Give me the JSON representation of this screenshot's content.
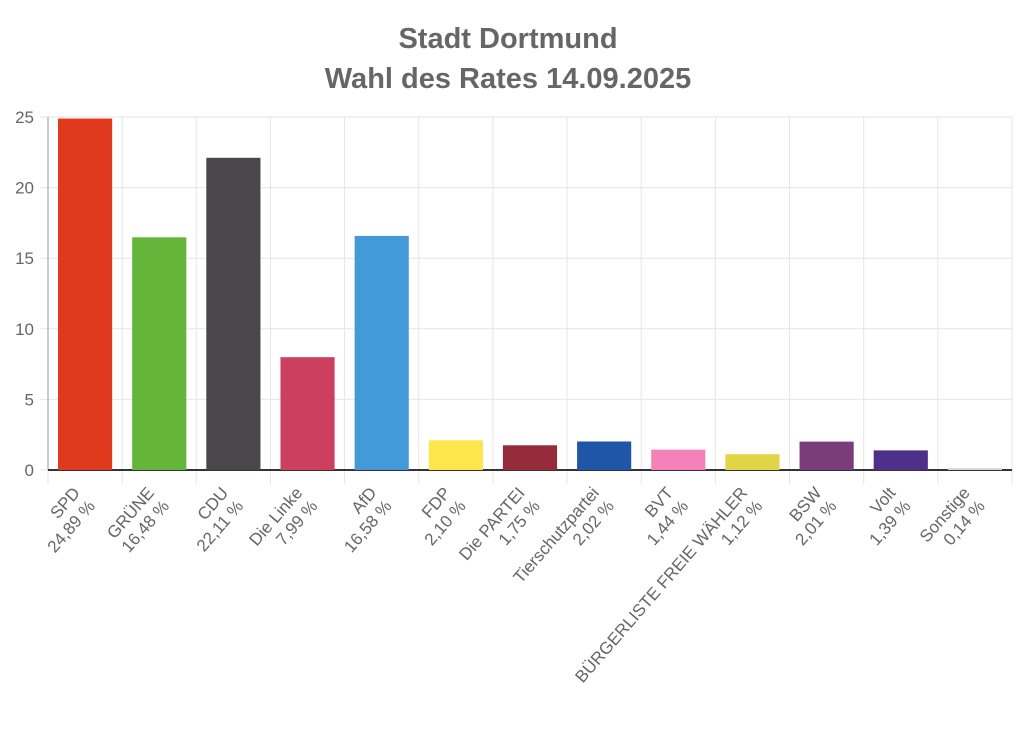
{
  "chart_data": {
    "type": "bar",
    "title": [
      "Stadt Dortmund",
      "Wahl des Rates 14.09.2025"
    ],
    "xlabel": "",
    "ylabel": "",
    "ylim": [
      0,
      25
    ],
    "yticks": [
      0,
      5,
      10,
      15,
      20,
      25
    ],
    "grid": true,
    "legend": "none",
    "categories": [
      "SPD",
      "GRÜNE",
      "CDU",
      "Die Linke",
      "AfD",
      "FDP",
      "Die PARTEI",
      "Tierschutzpartei",
      "BVT",
      "BÜRGERLISTE FREIE WÄHLER",
      "BSW",
      "Volt",
      "Sonstige"
    ],
    "value_labels": [
      "24,89 %",
      "16,48 %",
      "22,11 %",
      "7,99 %",
      "16,58 %",
      "2,10 %",
      "1,75 %",
      "2,02 %",
      "1,44 %",
      "1,12 %",
      "2,01 %",
      "1,39 %",
      "0,14 %"
    ],
    "values": [
      24.89,
      16.48,
      22.11,
      7.99,
      16.58,
      2.1,
      1.75,
      2.02,
      1.44,
      1.12,
      2.01,
      1.39,
      0.14
    ],
    "colors": [
      "#e03a1e",
      "#64b53a",
      "#49474b",
      "#cc3f5e",
      "#4499d9",
      "#fde54c",
      "#962b3c",
      "#1f56a8",
      "#f482b8",
      "#e2d447",
      "#7b3d7a",
      "#4e2f8a",
      "#d9d9d9"
    ]
  }
}
